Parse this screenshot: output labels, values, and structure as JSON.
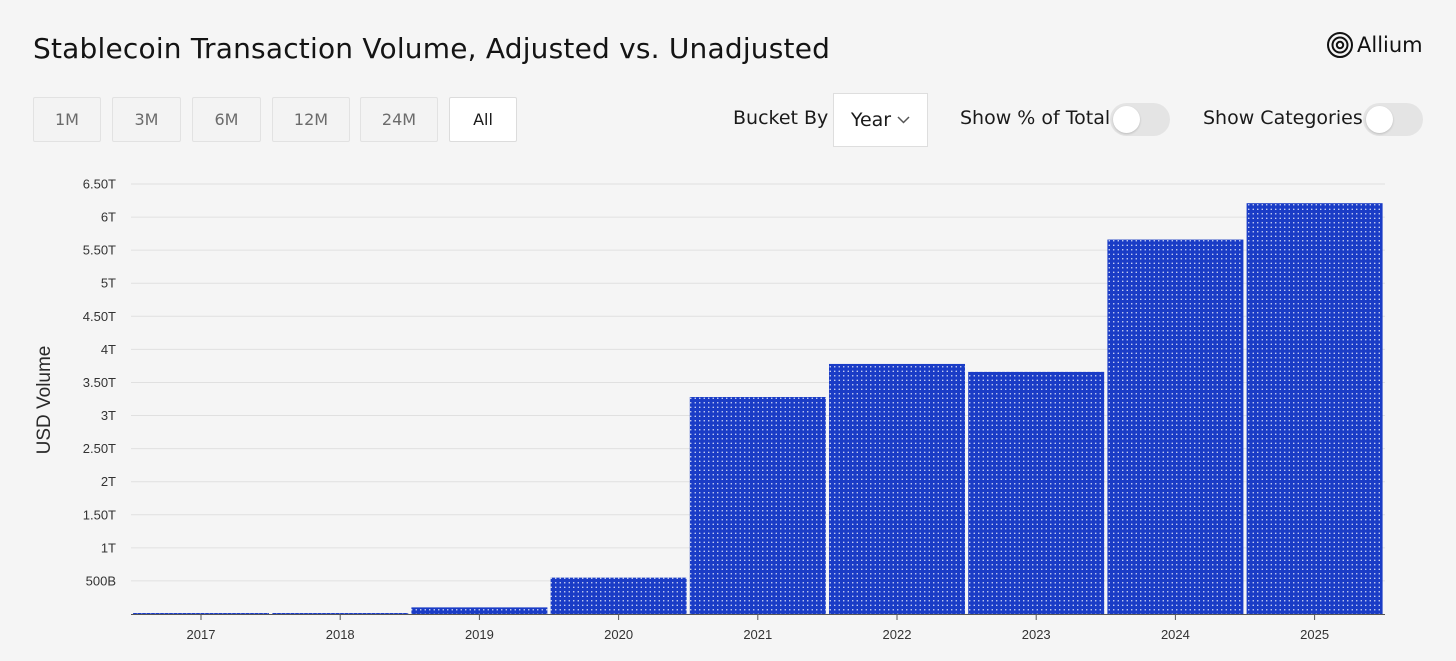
{
  "title": "Stablecoin Transaction Volume, Adjusted vs. Unadjusted",
  "logo": {
    "text": "Allium",
    "icon": "allium-logo-icon"
  },
  "range_buttons": [
    {
      "label": "1M",
      "active": false
    },
    {
      "label": "3M",
      "active": false
    },
    {
      "label": "6M",
      "active": false
    },
    {
      "label": "12M",
      "active": false
    },
    {
      "label": "24M",
      "active": false
    },
    {
      "label": "All",
      "active": true
    }
  ],
  "bucket": {
    "label": "Bucket By",
    "value": "Year",
    "icon": "chevron-down-icon"
  },
  "toggles": [
    {
      "label": "Show % of Total",
      "on": false
    },
    {
      "label": "Show Categories",
      "on": false
    }
  ],
  "colors": {
    "bar": "#1a3cc6",
    "dots": "#ffffff",
    "grid": "#e0e0e0",
    "axis": "#555555",
    "background": "#f5f5f5"
  },
  "chart_data": {
    "type": "bar",
    "title": "",
    "xlabel": "",
    "ylabel": "USD Volume",
    "categories": [
      "2017",
      "2018",
      "2019",
      "2020",
      "2021",
      "2022",
      "2023",
      "2024",
      "2025"
    ],
    "values": [
      0.003,
      0.01,
      0.1,
      0.55,
      3.28,
      3.78,
      3.66,
      5.66,
      6.21
    ],
    "value_unit": "T",
    "ylim": [
      0,
      6.5
    ],
    "yticks": [
      {
        "value": 0.5,
        "label": "500B"
      },
      {
        "value": 1,
        "label": "1T"
      },
      {
        "value": 1.5,
        "label": "1.50T"
      },
      {
        "value": 2,
        "label": "2T"
      },
      {
        "value": 2.5,
        "label": "2.50T"
      },
      {
        "value": 3,
        "label": "3T"
      },
      {
        "value": 3.5,
        "label": "3.50T"
      },
      {
        "value": 4,
        "label": "4T"
      },
      {
        "value": 4.5,
        "label": "4.50T"
      },
      {
        "value": 5,
        "label": "5T"
      },
      {
        "value": 5.5,
        "label": "5.50T"
      },
      {
        "value": 6,
        "label": "6T"
      },
      {
        "value": 6.5,
        "label": "6.50T"
      }
    ],
    "grid": true,
    "legend": "none"
  }
}
